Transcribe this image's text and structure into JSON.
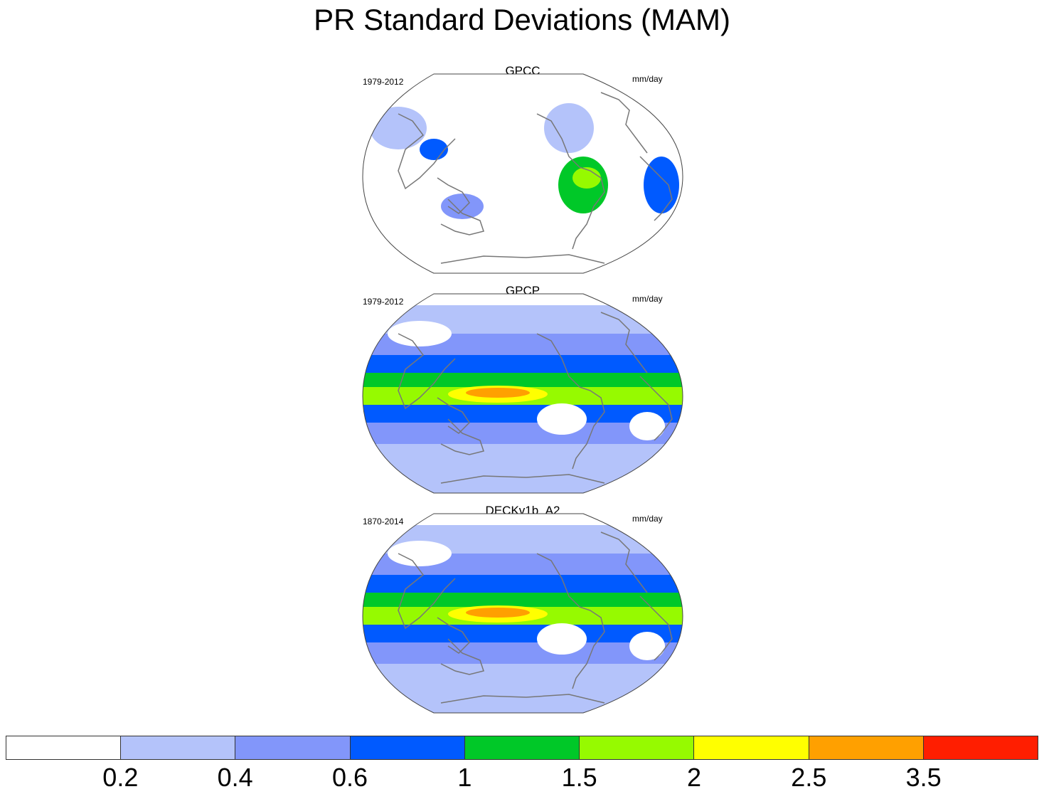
{
  "title": "PR Standard Deviations (MAM)",
  "panels": [
    {
      "name": "GPCC",
      "years": "1979-2012",
      "units": "mm/day",
      "style": "land"
    },
    {
      "name": "GPCP",
      "years": "1979-2012",
      "units": "mm/day",
      "style": "full"
    },
    {
      "name": "DECKv1b_A2",
      "years": "1870-2014",
      "units": "mm/day",
      "style": "full"
    }
  ],
  "colorbar": {
    "colors": [
      "#ffffff",
      "#b4c3fa",
      "#8296fa",
      "#005aff",
      "#00c828",
      "#96fa00",
      "#ffff00",
      "#ffa000",
      "#ff1e00"
    ],
    "labels": [
      "0.2",
      "0.4",
      "0.6",
      "1",
      "1.5",
      "2",
      "2.5",
      "3.5"
    ]
  }
}
